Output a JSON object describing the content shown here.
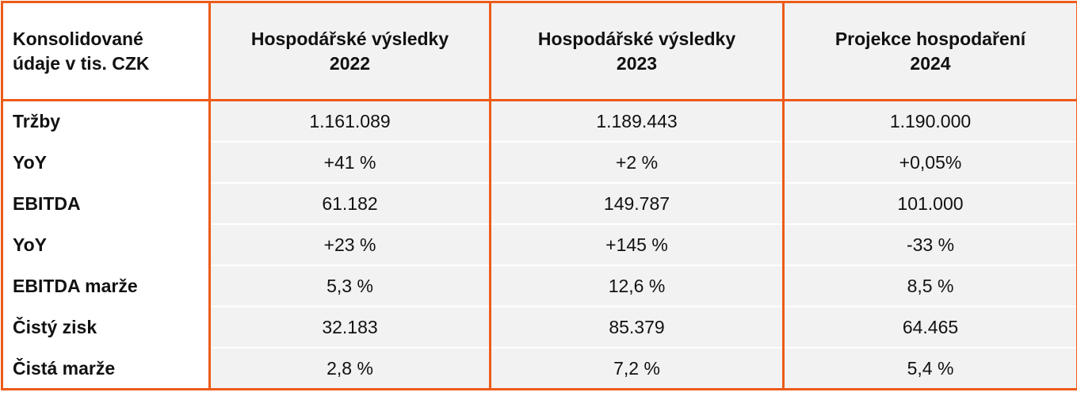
{
  "header": {
    "label_line1": "Konsolidované",
    "label_line2": "údaje v tis. CZK",
    "columns": [
      {
        "line1": "Hospodářské výsledky",
        "line2": "2022"
      },
      {
        "line1": "Hospodářské výsledky",
        "line2": "2023"
      },
      {
        "line1": "Projekce hospodaření",
        "line2": "2024"
      }
    ]
  },
  "rows": [
    {
      "label": "Tržby",
      "values": [
        "1.161.089",
        "1.189.443",
        "1.190.000"
      ]
    },
    {
      "label": "YoY",
      "values": [
        "+41 %",
        "+2 %",
        "+0,05%"
      ]
    },
    {
      "label": "EBITDA",
      "values": [
        "61.182",
        "149.787",
        "101.000"
      ]
    },
    {
      "label": "YoY",
      "values": [
        "+23 %",
        "+145 %",
        "-33 %"
      ]
    },
    {
      "label": "EBITDA marže",
      "values": [
        "5,3 %",
        "12,6 %",
        "8,5 %"
      ]
    },
    {
      "label": "Čistý zisk",
      "values": [
        "32.183",
        "85.379",
        "64.465"
      ]
    },
    {
      "label": "Čistá marže",
      "values": [
        "2,8 %",
        "7,2 %",
        "5,4 %"
      ]
    }
  ],
  "colors": {
    "border": "#ed5b1a",
    "cell_background": "#f2f2f2",
    "label_background": "#ffffff"
  }
}
